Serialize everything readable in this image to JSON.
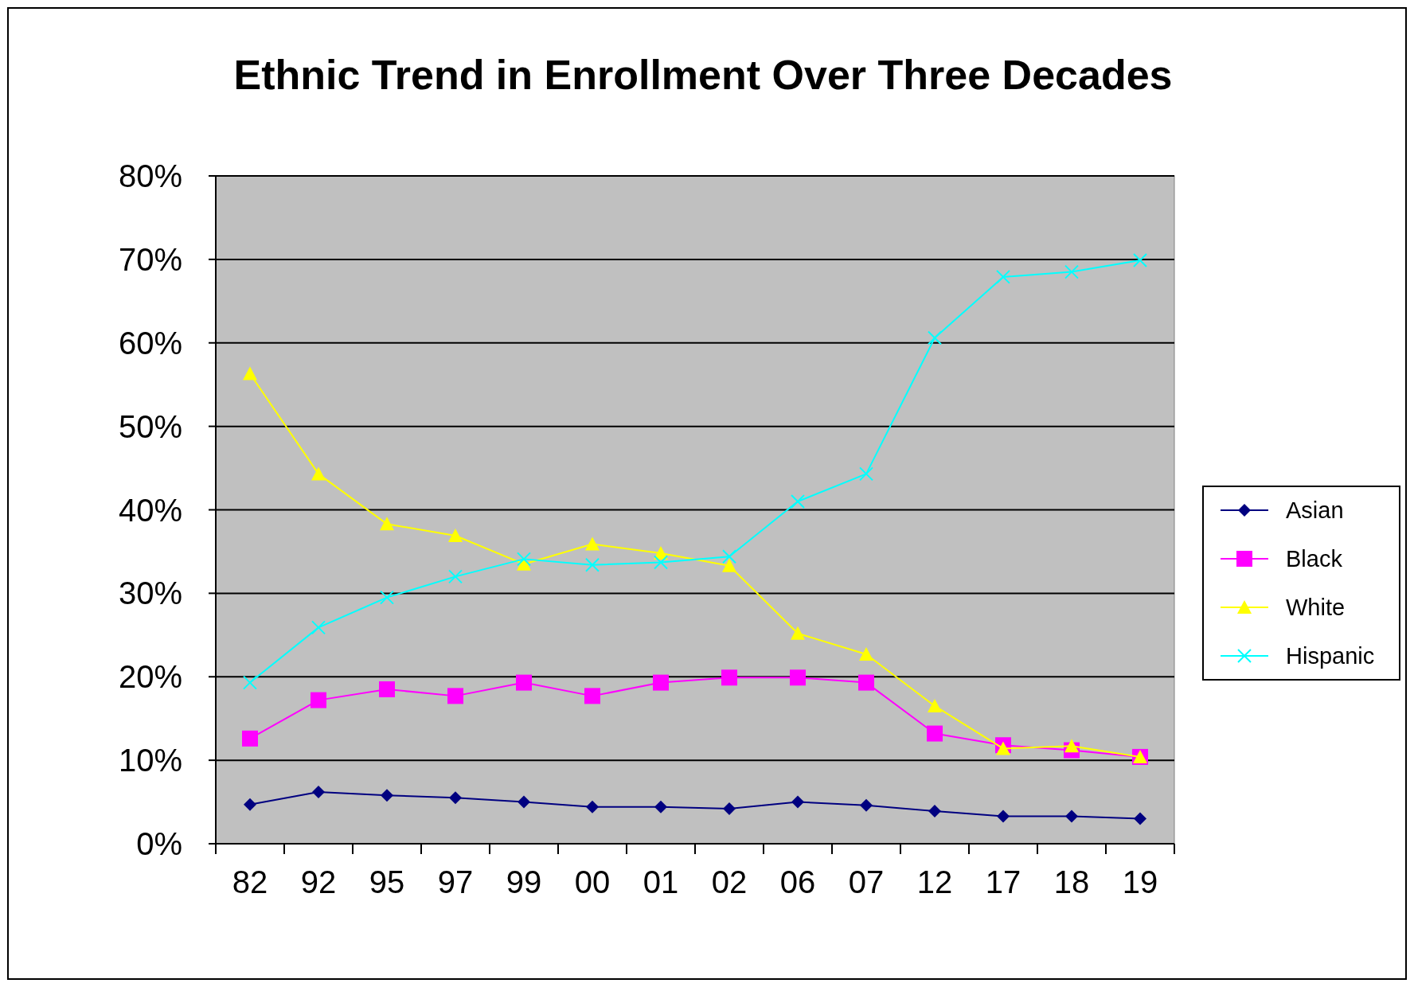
{
  "chart_data": {
    "type": "line",
    "title": "Ethnic Trend in Enrollment Over Three Decades",
    "categories": [
      "82",
      "92",
      "95",
      "97",
      "99",
      "00",
      "01",
      "02",
      "06",
      "07",
      "12",
      "17",
      "18",
      "19"
    ],
    "series": [
      {
        "name": "Asian",
        "color": "#000080",
        "marker": "diamond",
        "values": [
          4.7,
          6.2,
          5.8,
          5.5,
          5.0,
          4.4,
          4.4,
          4.2,
          5.0,
          4.6,
          3.9,
          3.3,
          3.3,
          3.0
        ]
      },
      {
        "name": "Black",
        "color": "#ff00ff",
        "marker": "square",
        "values": [
          12.6,
          17.2,
          18.5,
          17.7,
          19.3,
          17.7,
          19.3,
          19.9,
          19.9,
          19.3,
          13.2,
          11.8,
          11.2,
          10.4
        ]
      },
      {
        "name": "White",
        "color": "#ffff00",
        "marker": "triangle",
        "values": [
          56.3,
          44.3,
          38.3,
          36.9,
          33.5,
          35.9,
          34.8,
          33.3,
          25.2,
          22.7,
          16.5,
          11.4,
          11.7,
          10.4
        ]
      },
      {
        "name": "Hispanic",
        "color": "#00ffff",
        "marker": "cross",
        "values": [
          19.3,
          25.9,
          29.5,
          32.0,
          34.1,
          33.4,
          33.7,
          34.4,
          41.0,
          44.3,
          60.6,
          67.9,
          68.5,
          69.9
        ]
      }
    ],
    "ylim": [
      0,
      80
    ],
    "yticks": [
      {
        "value": 0,
        "label": "0%"
      },
      {
        "value": 10,
        "label": "10%"
      },
      {
        "value": 20,
        "label": "20%"
      },
      {
        "value": 30,
        "label": "30%"
      },
      {
        "value": 40,
        "label": "40%"
      },
      {
        "value": 50,
        "label": "50%"
      },
      {
        "value": 60,
        "label": "60%"
      },
      {
        "value": 70,
        "label": "70%"
      },
      {
        "value": 80,
        "label": "80%"
      }
    ],
    "grid": "y",
    "legend": "right"
  }
}
